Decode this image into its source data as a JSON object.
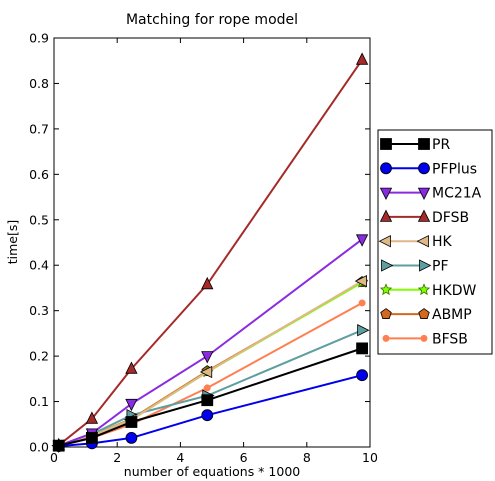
{
  "chart_data": {
    "type": "line",
    "title": "Matching for rope model",
    "xlabel": "number of equations * 1000",
    "ylabel": "time[s]",
    "xlim": [
      0,
      10
    ],
    "ylim": [
      0,
      0.9
    ],
    "xticks": [
      "0",
      "2",
      "4",
      "6",
      "8",
      "10"
    ],
    "yticks": [
      "0.0",
      "0.1",
      "0.2",
      "0.3",
      "0.4",
      "0.5",
      "0.6",
      "0.7",
      "0.8",
      "0.9"
    ],
    "legend_position": "right, outside plot",
    "grid": false,
    "x": [
      0.15,
      1.2,
      2.45,
      4.85,
      9.75
    ],
    "series": [
      {
        "name": "PR",
        "color": "#000000",
        "marker": "square",
        "values": [
          0.003,
          0.02,
          0.055,
          0.103,
          0.217
        ]
      },
      {
        "name": "PFPlus",
        "color": "#0000ee",
        "marker": "circle",
        "values": [
          0.002,
          0.008,
          0.02,
          0.07,
          0.158
        ]
      },
      {
        "name": "MC21A",
        "color": "#8a2be2",
        "marker": "triangle-down",
        "values": [
          0.003,
          0.03,
          0.095,
          0.2,
          0.457
        ]
      },
      {
        "name": "DFSB",
        "color": "#a52a2a",
        "marker": "triangle-up",
        "values": [
          0.004,
          0.062,
          0.172,
          0.358,
          0.852
        ]
      },
      {
        "name": "HK",
        "color": "#deb887",
        "marker": "triangle-left",
        "values": [
          0.003,
          0.025,
          0.06,
          0.165,
          0.365
        ]
      },
      {
        "name": "PF",
        "color": "#5f9ea0",
        "marker": "triangle-right",
        "values": [
          0.003,
          0.028,
          0.07,
          0.113,
          0.257
        ]
      },
      {
        "name": "HKDW",
        "color": "#7fff00",
        "marker": "star",
        "values": [
          0.003,
          0.025,
          0.06,
          0.165,
          0.362
        ]
      },
      {
        "name": "ABMP",
        "color": "#d2691e",
        "marker": "pentagon",
        "values": [
          0.003,
          0.025,
          0.062,
          0.167,
          0.363
        ]
      },
      {
        "name": "BFSB",
        "color": "#ff7f50",
        "marker": "circle-small",
        "values": [
          0.002,
          0.02,
          0.05,
          0.13,
          0.317
        ]
      }
    ]
  }
}
